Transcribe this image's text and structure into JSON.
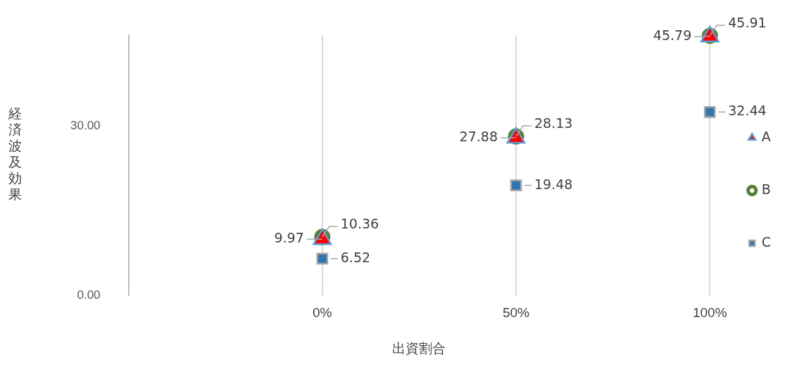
{
  "chart_data": {
    "type": "scatter",
    "xlabel": "出資割合",
    "ylabel": "経済波及効果",
    "x": [
      0,
      50,
      100
    ],
    "xlim": [
      -50,
      100
    ],
    "xticks": [
      {
        "value": 0,
        "label": "0%"
      },
      {
        "value": 50,
        "label": "50%"
      },
      {
        "value": 100,
        "label": "100%"
      }
    ],
    "ylim": [
      0,
      46
    ],
    "yticks": [
      {
        "value": 0,
        "label": "0.00"
      },
      {
        "value": 30,
        "label": "30.00"
      }
    ],
    "grid": "x",
    "legend": "right",
    "data_labels": true,
    "series": [
      {
        "name": "A",
        "color": "#ff0000",
        "marker": "triangle",
        "values": [
          9.97,
          27.88,
          45.79
        ]
      },
      {
        "name": "B",
        "color": "#548235",
        "marker": "circle",
        "values": [
          10.36,
          28.13,
          45.91
        ]
      },
      {
        "name": "C",
        "color": "#2e75b6",
        "marker": "square",
        "values": [
          6.52,
          19.48,
          32.44
        ]
      }
    ]
  }
}
